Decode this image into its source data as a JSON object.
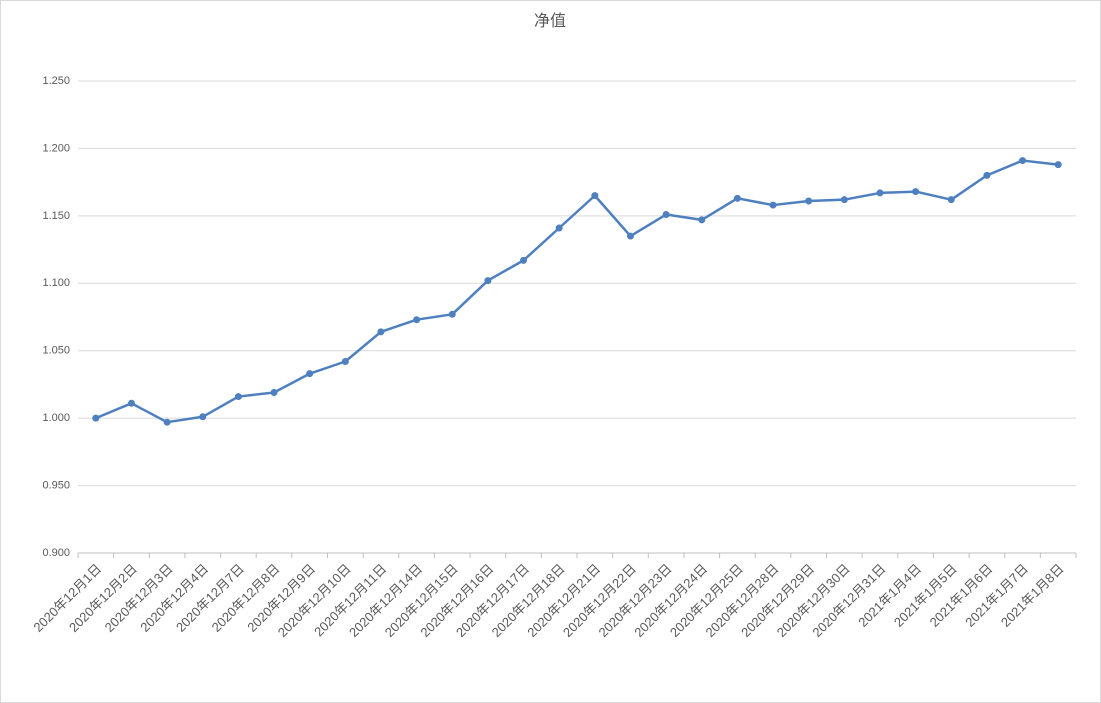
{
  "chart_data": {
    "type": "line",
    "title": "净值",
    "categories": [
      "2020年12月1日",
      "2020年12月2日",
      "2020年12月3日",
      "2020年12月4日",
      "2020年12月7日",
      "2020年12月8日",
      "2020年12月9日",
      "2020年12月10日",
      "2020年12月11日",
      "2020年12月14日",
      "2020年12月15日",
      "2020年12月16日",
      "2020年12月17日",
      "2020年12月18日",
      "2020年12月21日",
      "2020年12月22日",
      "2020年12月23日",
      "2020年12月24日",
      "2020年12月25日",
      "2020年12月28日",
      "2020年12月29日",
      "2020年12月30日",
      "2020年12月31日",
      "2021年1月4日",
      "2021年1月5日",
      "2021年1月6日",
      "2021年1月7日",
      "2021年1月8日"
    ],
    "values": [
      1.0,
      1.011,
      0.997,
      1.001,
      1.016,
      1.019,
      1.033,
      1.042,
      1.064,
      1.073,
      1.077,
      1.102,
      1.117,
      1.141,
      1.165,
      1.135,
      1.151,
      1.147,
      1.163,
      1.158,
      1.161,
      1.162,
      1.167,
      1.168,
      1.162,
      1.18,
      1.191,
      1.188
    ],
    "color": "#4e7fbf",
    "ylim": [
      0.9,
      1.25
    ],
    "yticks": [
      {
        "value": 0.9,
        "label": "0.900"
      },
      {
        "value": 0.95,
        "label": "0.950"
      },
      {
        "value": 1.0,
        "label": "1.000"
      },
      {
        "value": 1.05,
        "label": "1.050"
      },
      {
        "value": 1.1,
        "label": "1.100"
      },
      {
        "value": 1.15,
        "label": "1.150"
      },
      {
        "value": 1.2,
        "label": "1.200"
      },
      {
        "value": 1.25,
        "label": "1.250"
      }
    ],
    "grid": true
  }
}
